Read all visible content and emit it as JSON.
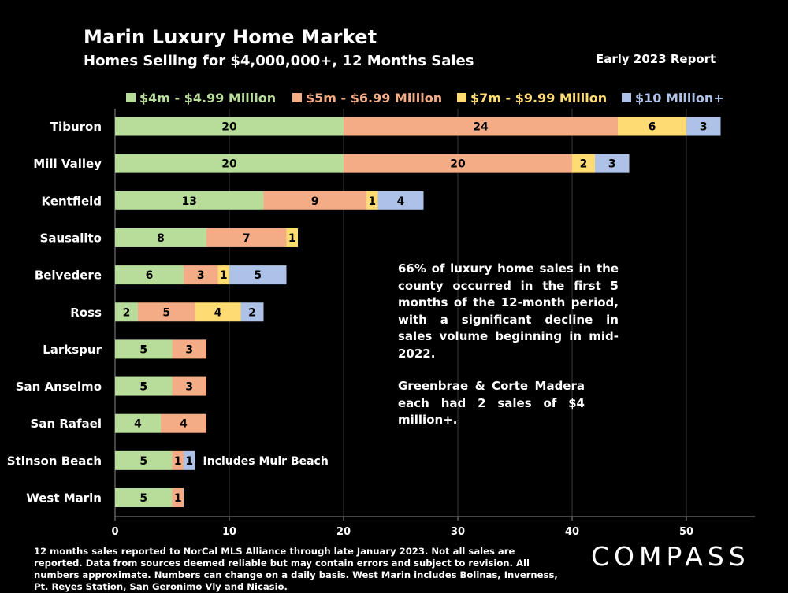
{
  "header": {
    "title": "Marin Luxury Home Market",
    "subtitle": "Homes Selling for $4,000,000+, 12 Months Sales",
    "report": "Early 2023 Report"
  },
  "notes": {
    "note1": "66% of luxury home sales in the county occurred in the first 5 months of the 12-month period, with a significant decline in sales volume beginning in mid-2022.",
    "note2": "Greenbrae & Corte Madera each had 2 sales of $4 million+."
  },
  "footer": "12 months sales reported to NorCal MLS Alliance through late January 2023. Not all sales are reported. Data from sources deemed reliable but may contain errors and subject to revision. All numbers approximate. Numbers can change on a daily basis. West Marin includes Bolinas, Inverness, Pt. Reyes Station, San Geronimo Vly and Nicasio.",
  "logo": "COMPASS",
  "colors": {
    "s1": "#b8dc9a",
    "s2": "#f3ac86",
    "s3": "#ffdc73",
    "s4": "#adc2e6",
    "background": "#000000",
    "gridline": "#3a3a3a"
  },
  "chart_data": {
    "type": "bar",
    "orientation": "horizontal",
    "stacked": true,
    "categories": [
      "Tiburon",
      "Mill Valley",
      "Kentfield",
      "Sausalito",
      "Belvedere",
      "Ross",
      "Larkspur",
      "San Anselmo",
      "San Rafael",
      "Stinson Beach",
      "West Marin"
    ],
    "series": [
      {
        "name": "$4m - $4.99 Million",
        "values": [
          20,
          20,
          13,
          8,
          6,
          2,
          5,
          5,
          4,
          5,
          5
        ]
      },
      {
        "name": "$5m - $6.99 Million",
        "values": [
          24,
          20,
          9,
          7,
          3,
          5,
          3,
          3,
          4,
          1,
          1
        ]
      },
      {
        "name": "$7m - $9.99 Million",
        "values": [
          6,
          2,
          1,
          1,
          1,
          4,
          0,
          0,
          0,
          0,
          0
        ]
      },
      {
        "name": "$10 Million+",
        "values": [
          3,
          3,
          4,
          0,
          5,
          2,
          0,
          0,
          0,
          1,
          0
        ]
      }
    ],
    "xlim": [
      0,
      56
    ],
    "xticks": [
      0,
      10,
      20,
      30,
      40,
      50
    ],
    "grid": true,
    "legend": "top",
    "annotations": [
      {
        "category": "Stinson Beach",
        "text": "Includes Muir Beach"
      }
    ]
  }
}
